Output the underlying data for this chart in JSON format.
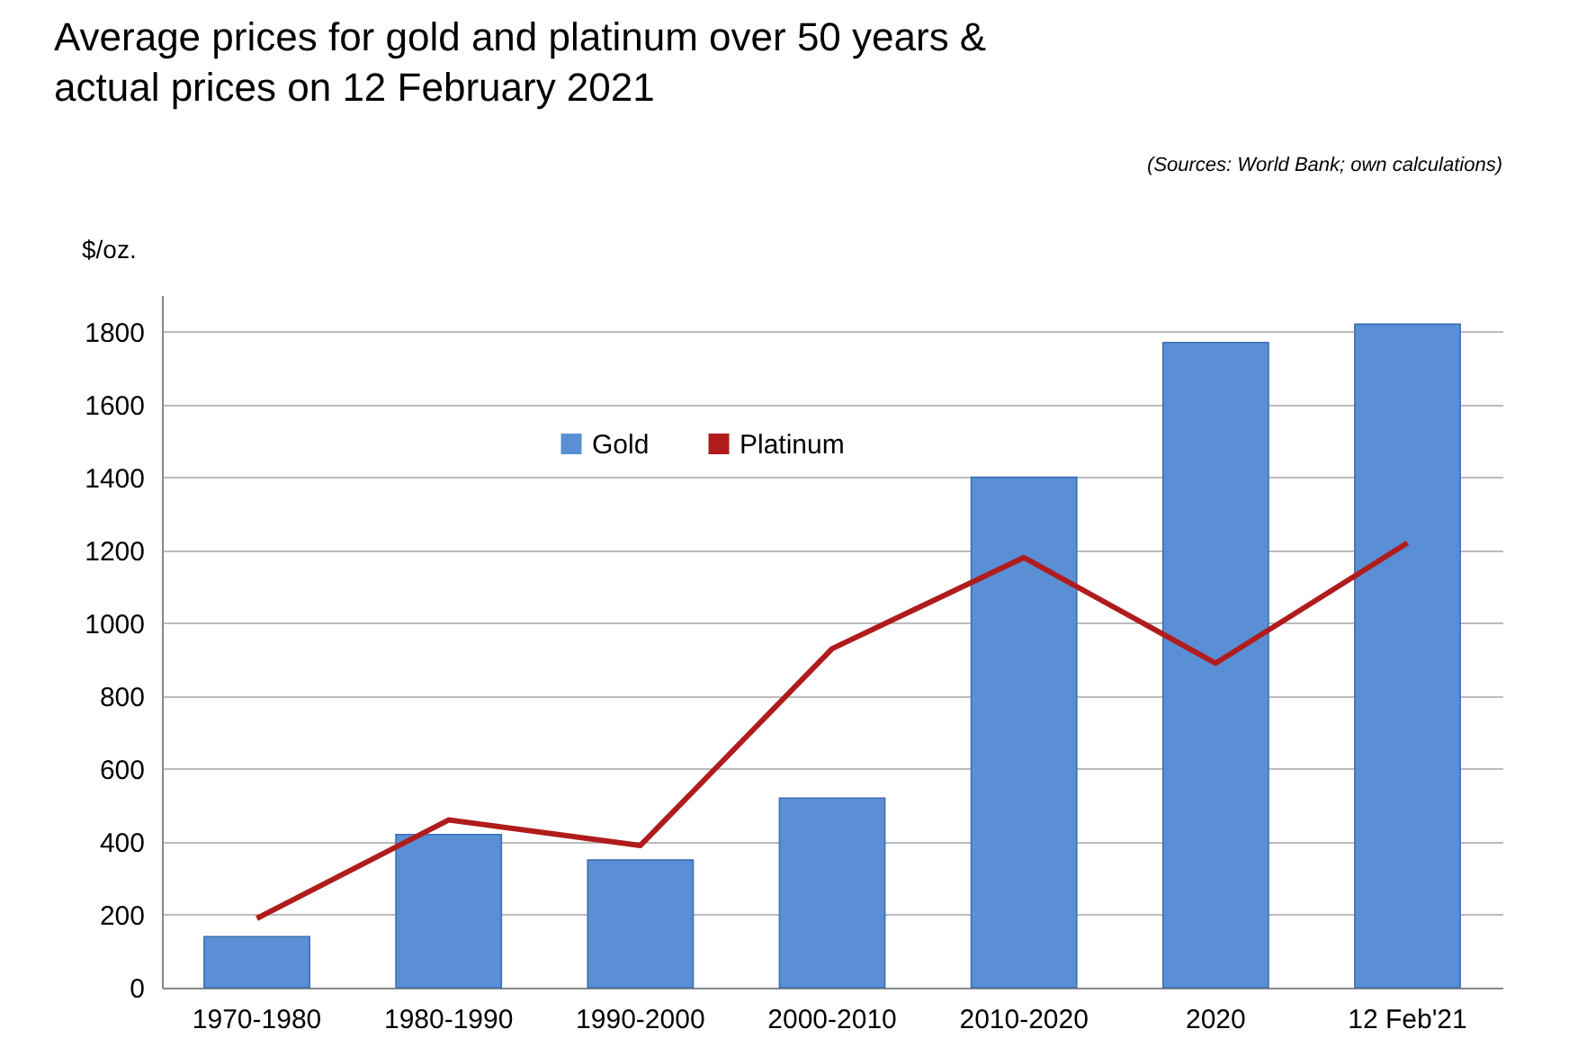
{
  "chart_data": {
    "type": "bar",
    "title": "Average prices for gold and platinum over 50 years & actual prices on 12 February 2021",
    "ylabel": "$/oz.",
    "annotations": [
      "(Sources: World Bank; own calculations)"
    ],
    "categories": [
      "1970-1980",
      "1980-1990",
      "1990-2000",
      "2000-2010",
      "2010-2020",
      "2020",
      "12 Feb'21"
    ],
    "series": [
      {
        "name": "Gold",
        "color": "#5a8fd6",
        "values": [
          140,
          420,
          350,
          520,
          1400,
          1770,
          1820
        ]
      },
      {
        "name": "Platinum",
        "type": "line",
        "color": "#b01c1c",
        "values": [
          190,
          460,
          390,
          930,
          1180,
          890,
          1220
        ]
      }
    ],
    "ylim": [
      0,
      1900
    ],
    "yticks": [
      0,
      200,
      400,
      600,
      800,
      1000,
      1200,
      1400,
      1600,
      1800
    ],
    "grid": "y",
    "legend": "top left"
  }
}
